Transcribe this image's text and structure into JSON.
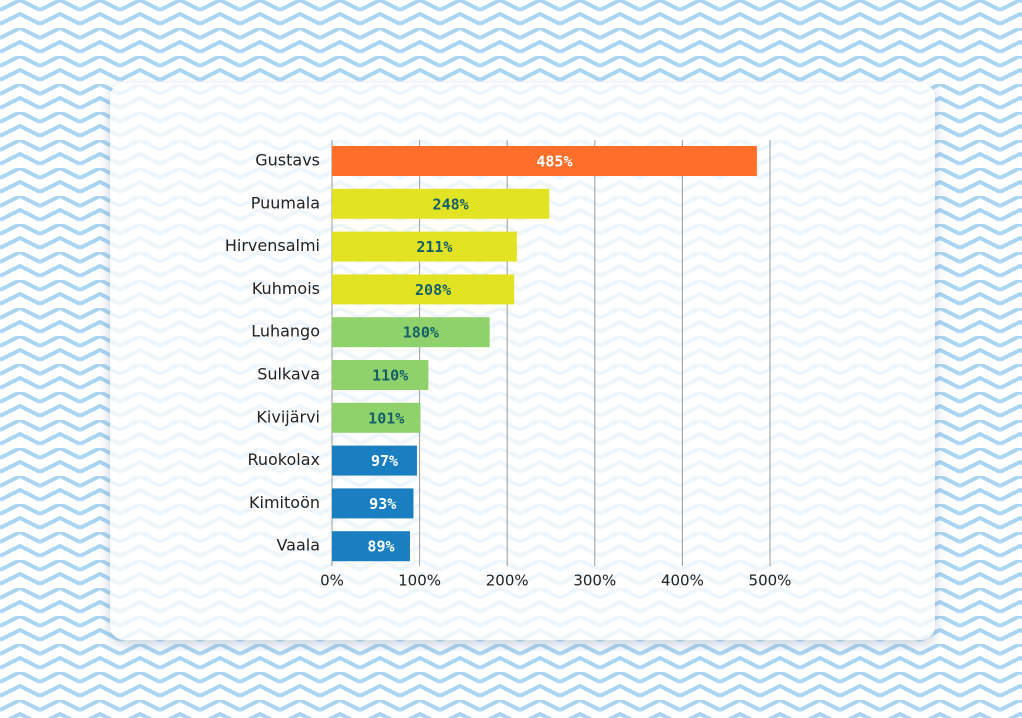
{
  "chart_data": {
    "type": "bar",
    "orientation": "horizontal",
    "categories": [
      "Gustavs",
      "Puumala",
      "Hirvensalmi",
      "Kuhmois",
      "Luhango",
      "Sulkava",
      "Kivijärvi",
      "Ruokolax",
      "Kimitoön",
      "Vaala"
    ],
    "values": [
      485,
      248,
      211,
      208,
      180,
      110,
      101,
      97,
      93,
      89
    ],
    "value_labels": [
      "485%",
      "248%",
      "211%",
      "208%",
      "180%",
      "110%",
      "101%",
      "97%",
      "93%",
      "89%"
    ],
    "colors": [
      "#ff6f2a",
      "#e2e322",
      "#e2e322",
      "#e2e322",
      "#8fd16a",
      "#8fd16a",
      "#8fd16a",
      "#1a7fc0",
      "#1a7fc0",
      "#1a7fc0"
    ],
    "value_label_colors": [
      "#ffffff",
      "#14606a",
      "#14606a",
      "#14606a",
      "#14606a",
      "#14606a",
      "#14606a",
      "#ffffff",
      "#ffffff",
      "#ffffff"
    ],
    "xlim": [
      0,
      500
    ],
    "xticks": [
      {
        "value": 0,
        "label": "0%"
      },
      {
        "value": 100,
        "label": "100%"
      },
      {
        "value": 200,
        "label": "200%"
      },
      {
        "value": 300,
        "label": "300%"
      },
      {
        "value": 400,
        "label": "400%"
      },
      {
        "value": 500,
        "label": "500%"
      }
    ],
    "grid": true
  }
}
